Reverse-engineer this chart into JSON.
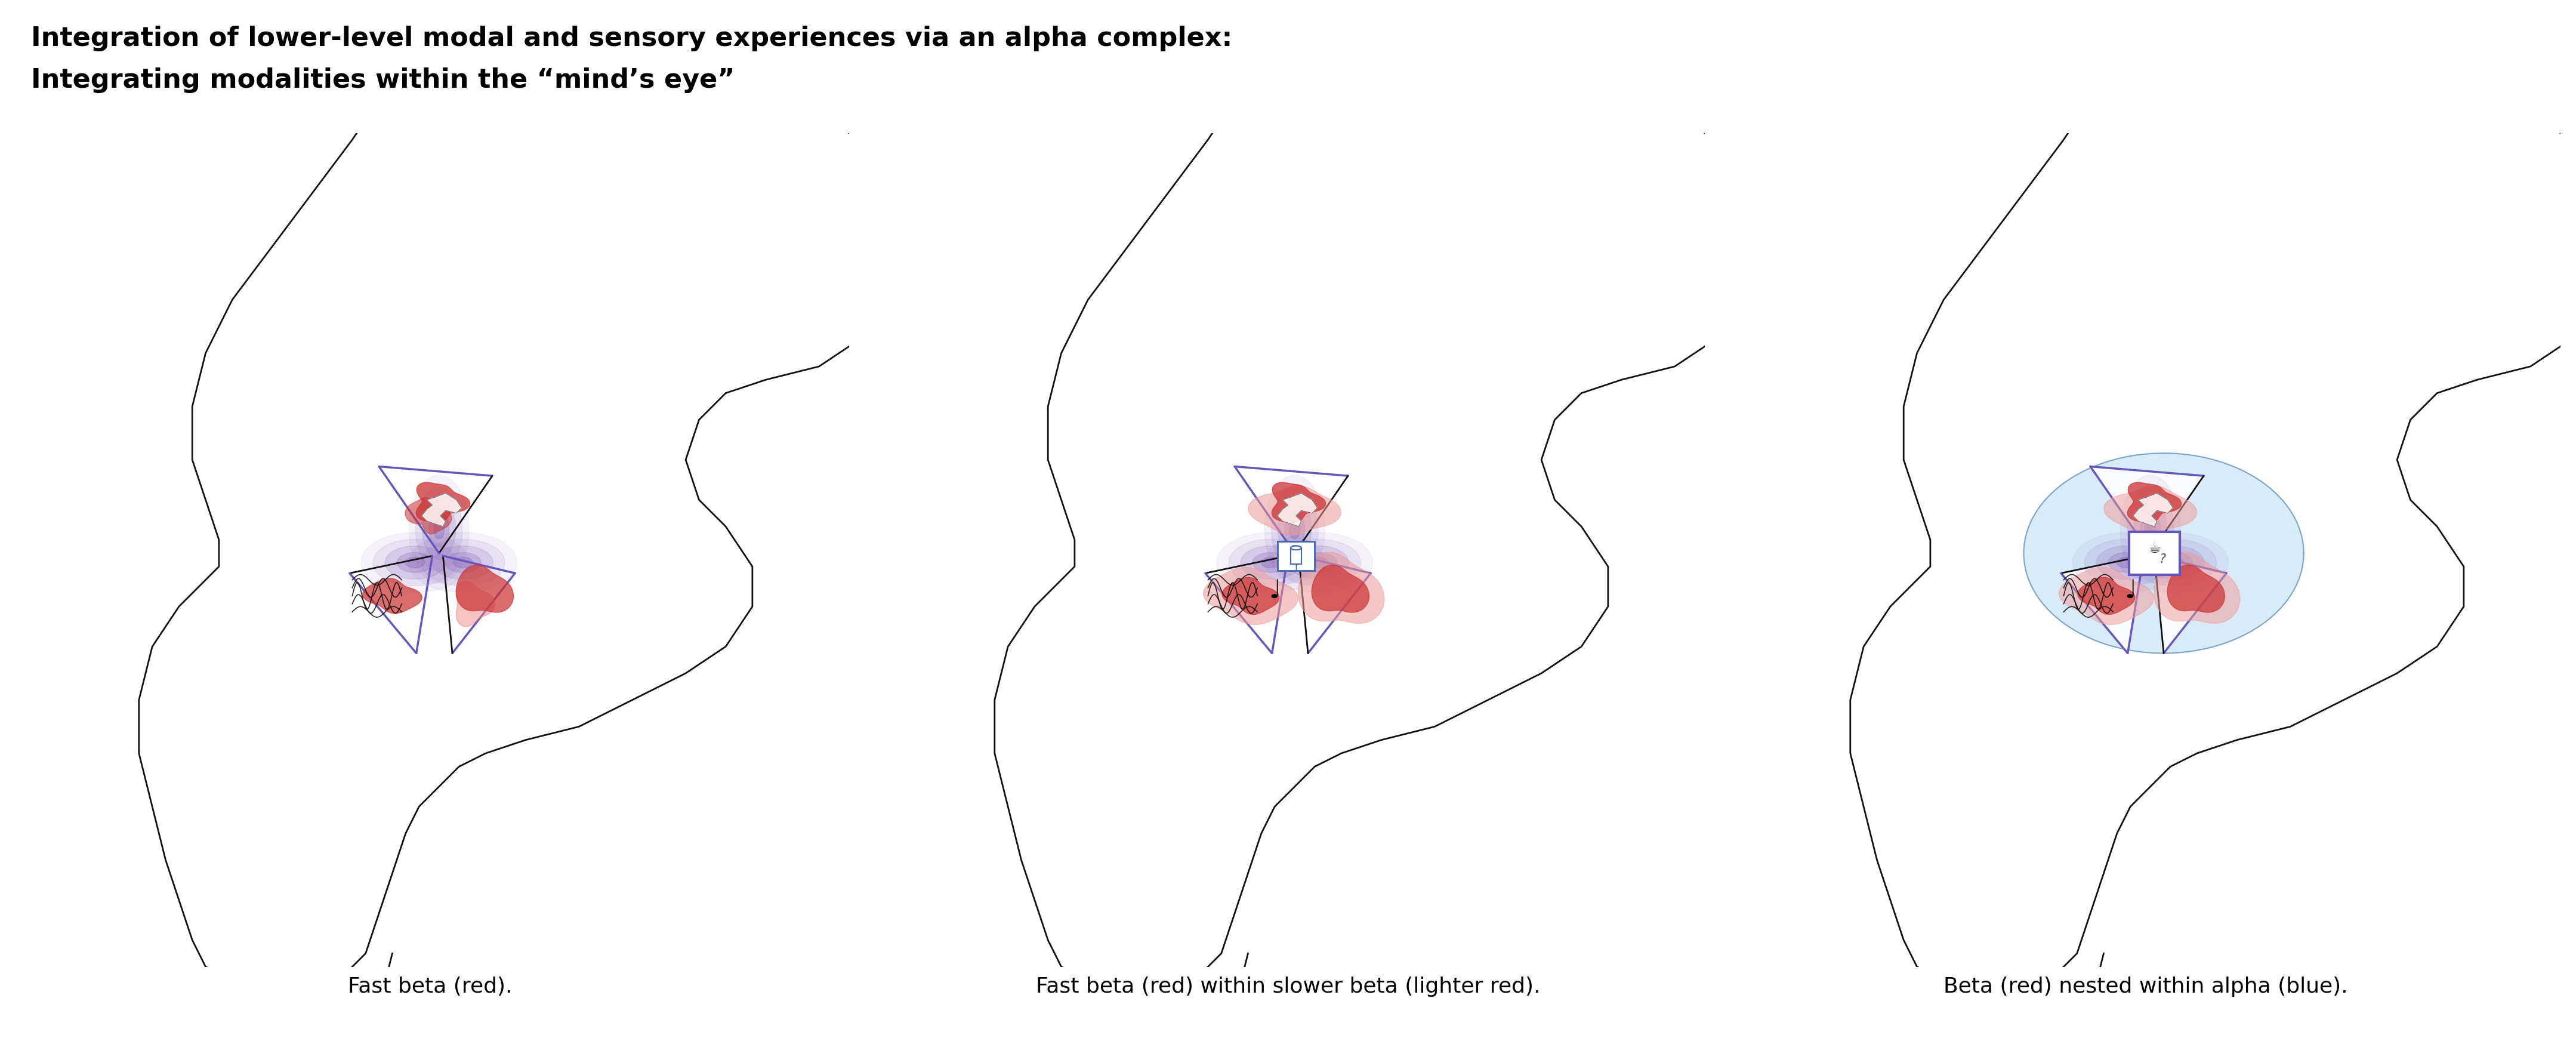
{
  "title_line1": "Integration of lower-level modal and sensory experiences via an alpha complex:",
  "title_line2": "Integrating modalities within the “mind’s eye”",
  "caption1": "Fast beta (red).",
  "caption2": "Fast beta (red) within slower beta (lighter red).",
  "caption3": "Beta (red) nested within alpha (blue).",
  "bg_color": "#ffffff",
  "tri_purple": "#6655bb",
  "tri_black": "#111111",
  "red_dark": "#cc3333",
  "red_medium": "#dd5555",
  "red_light": "#ee9999",
  "pink_light": "#f0aaaa",
  "blue_alpha": "#aad4f0",
  "purple_glow": "#8866bb",
  "title_fontsize": 32,
  "caption_fontsize": 26
}
